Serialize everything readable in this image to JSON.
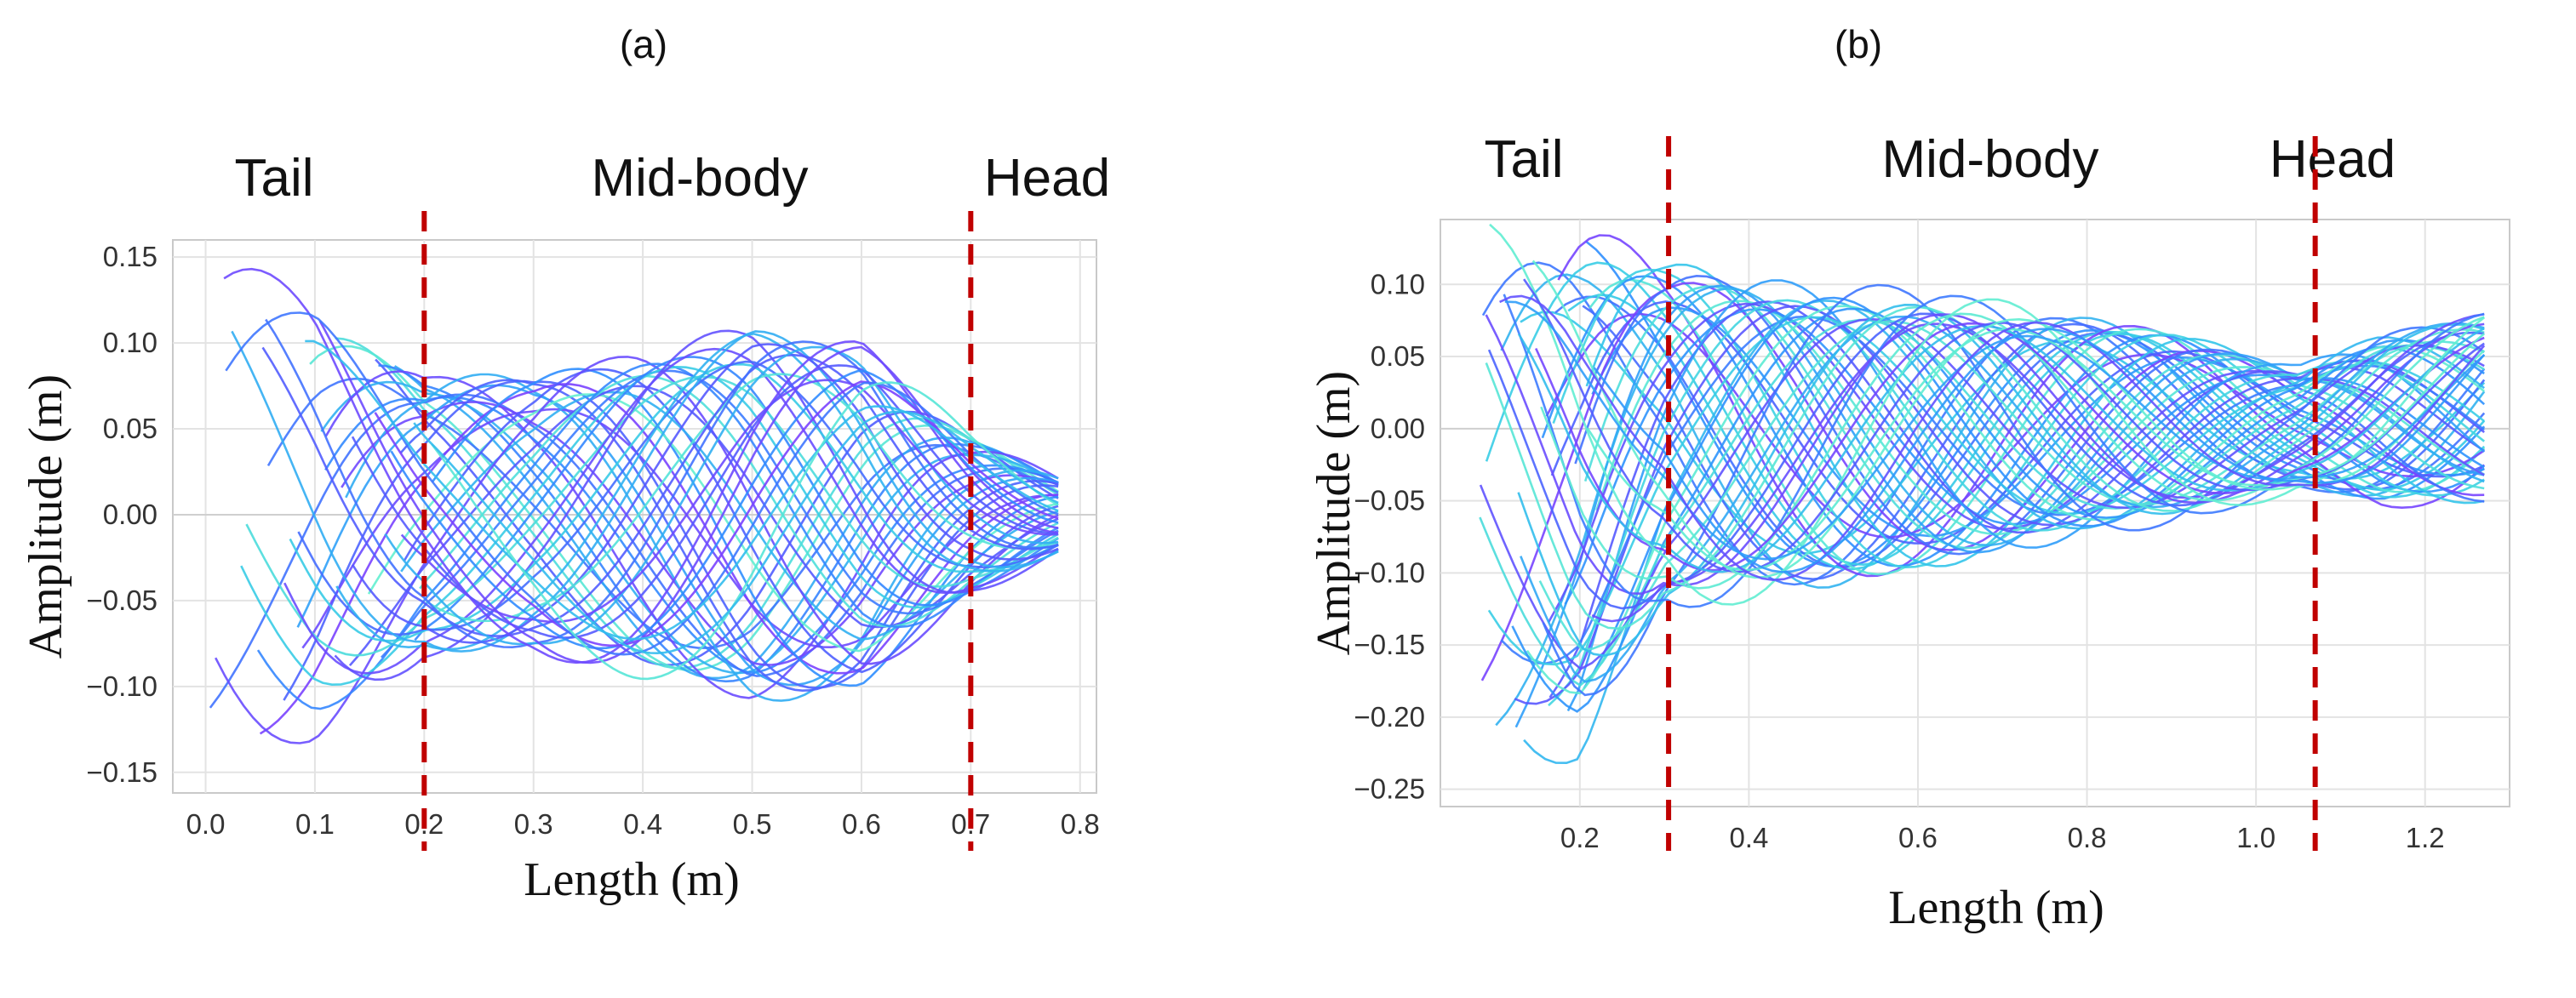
{
  "chart_data": [
    {
      "panel": "(a)",
      "type": "line",
      "xlabel": "Length (m)",
      "ylabel": "Amplitude (m)",
      "xlim": [
        -0.03,
        0.815
      ],
      "ylim": [
        -0.162,
        0.16
      ],
      "xticks": [
        0.0,
        0.1,
        0.2,
        0.3,
        0.4,
        0.5,
        0.6,
        0.7,
        0.8
      ],
      "xtick_labels": [
        "0.0",
        "0.1",
        "0.2",
        "0.3",
        "0.4",
        "0.5",
        "0.6",
        "0.7",
        "0.8"
      ],
      "yticks": [
        0.15,
        0.1,
        0.05,
        0.0,
        -0.05,
        -0.1,
        -0.15
      ],
      "ytick_labels": [
        "0.15",
        "0.10",
        "0.05",
        "0.00",
        "−0.05",
        "−0.10",
        "−0.15"
      ],
      "grid": true,
      "dividers": [
        0.2,
        0.7
      ],
      "regions": [
        "Tail",
        "Mid-body",
        "Head"
      ],
      "region_centers": [
        0.1,
        0.45,
        0.745
      ],
      "num_curves": 50,
      "x_start_range": [
        0.0,
        0.21
      ],
      "x_end": 0.78,
      "envelope": {
        "x": [
          0.0,
          0.1,
          0.2,
          0.3,
          0.4,
          0.5,
          0.6,
          0.7,
          0.78
        ],
        "amplitude": [
          0.135,
          0.12,
          0.075,
          0.072,
          0.088,
          0.1,
          0.09,
          0.045,
          0.02
        ]
      },
      "wavelength": 0.55,
      "colors": [
        "#7f3fff",
        "#4f5fff",
        "#2f8fff",
        "#33c8e8",
        "#63f0d0"
      ]
    },
    {
      "panel": "(b)",
      "type": "line",
      "xlabel": "Length (m)",
      "ylabel": "Amplitude (m)",
      "xlim": [
        0.035,
        1.3
      ],
      "ylim": [
        -0.262,
        0.145
      ],
      "xticks": [
        0.2,
        0.4,
        0.6,
        0.8,
        1.0,
        1.2
      ],
      "xtick_labels": [
        "0.2",
        "0.4",
        "0.6",
        "0.8",
        "1.0",
        "1.2"
      ],
      "yticks": [
        0.1,
        0.05,
        0.0,
        -0.05,
        -0.1,
        -0.15,
        -0.2,
        -0.25
      ],
      "ytick_labels": [
        "0.10",
        "0.05",
        "0.00",
        "−0.05",
        "−0.10",
        "−0.15",
        "−0.20",
        "−0.25"
      ],
      "grid": true,
      "dividers": [
        0.305,
        1.07
      ],
      "regions": [
        "Tail",
        "Mid-body",
        "Head"
      ],
      "region_centers": [
        0.14,
        0.64,
        1.18
      ],
      "num_curves": 55,
      "x_start_range": [
        0.08,
        0.22
      ],
      "x_end": 1.27,
      "envelope": {
        "x": [
          0.08,
          0.2,
          0.3,
          0.5,
          0.7,
          0.9,
          1.05,
          1.15,
          1.27
        ],
        "amplitude": [
          0.17,
          0.16,
          0.11,
          0.095,
          0.08,
          0.06,
          0.04,
          0.055,
          0.06
        ]
      },
      "envelope_offset": {
        "x": [
          0.08,
          0.2,
          0.3,
          0.6,
          0.9,
          1.05,
          1.27
        ],
        "offset": [
          -0.05,
          -0.05,
          -0.01,
          0.0,
          0.0,
          0.0,
          0.02
        ]
      },
      "wavelength": 0.62,
      "colors": [
        "#7f3fff",
        "#4f5fff",
        "#2f8fff",
        "#33c8e8",
        "#63f0d0"
      ]
    }
  ]
}
